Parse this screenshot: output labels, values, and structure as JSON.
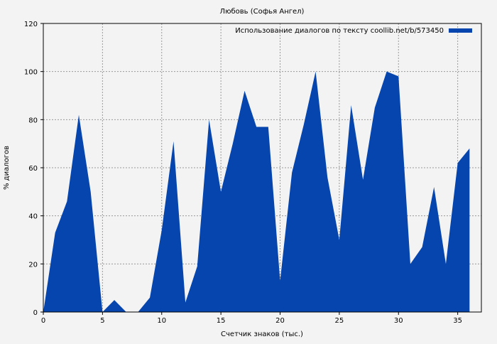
{
  "chart_data": {
    "type": "area",
    "title": "Любовь (Софья Ангел)",
    "xlabel": "Счетчик знаков (тыс.)",
    "ylabel": "% диалогов",
    "xlim": [
      0,
      37
    ],
    "ylim": [
      0,
      120
    ],
    "xticks": [
      0,
      5,
      10,
      15,
      20,
      25,
      30,
      35
    ],
    "yticks": [
      0,
      20,
      40,
      60,
      80,
      100,
      120
    ],
    "grid": true,
    "legend_position": "top-right",
    "color": "#0645ad",
    "series": [
      {
        "name": "Использование диалогов по тексту coollib.net/b/573450",
        "x": [
          0,
          1,
          2,
          3,
          4,
          5,
          6,
          7,
          8,
          9,
          10,
          11,
          12,
          13,
          14,
          15,
          16,
          17,
          18,
          19,
          20,
          21,
          22,
          23,
          24,
          25,
          26,
          27,
          28,
          29,
          30,
          31,
          32,
          33,
          34,
          35,
          36
        ],
        "values": [
          0,
          33,
          46,
          82,
          50,
          0,
          5,
          0,
          0,
          6,
          34,
          71,
          4,
          19,
          80,
          50,
          70,
          92,
          77,
          77,
          13,
          58,
          78,
          100,
          56,
          30,
          86,
          55,
          85,
          100,
          98,
          20,
          27,
          52,
          20,
          62,
          68
        ]
      }
    ]
  }
}
